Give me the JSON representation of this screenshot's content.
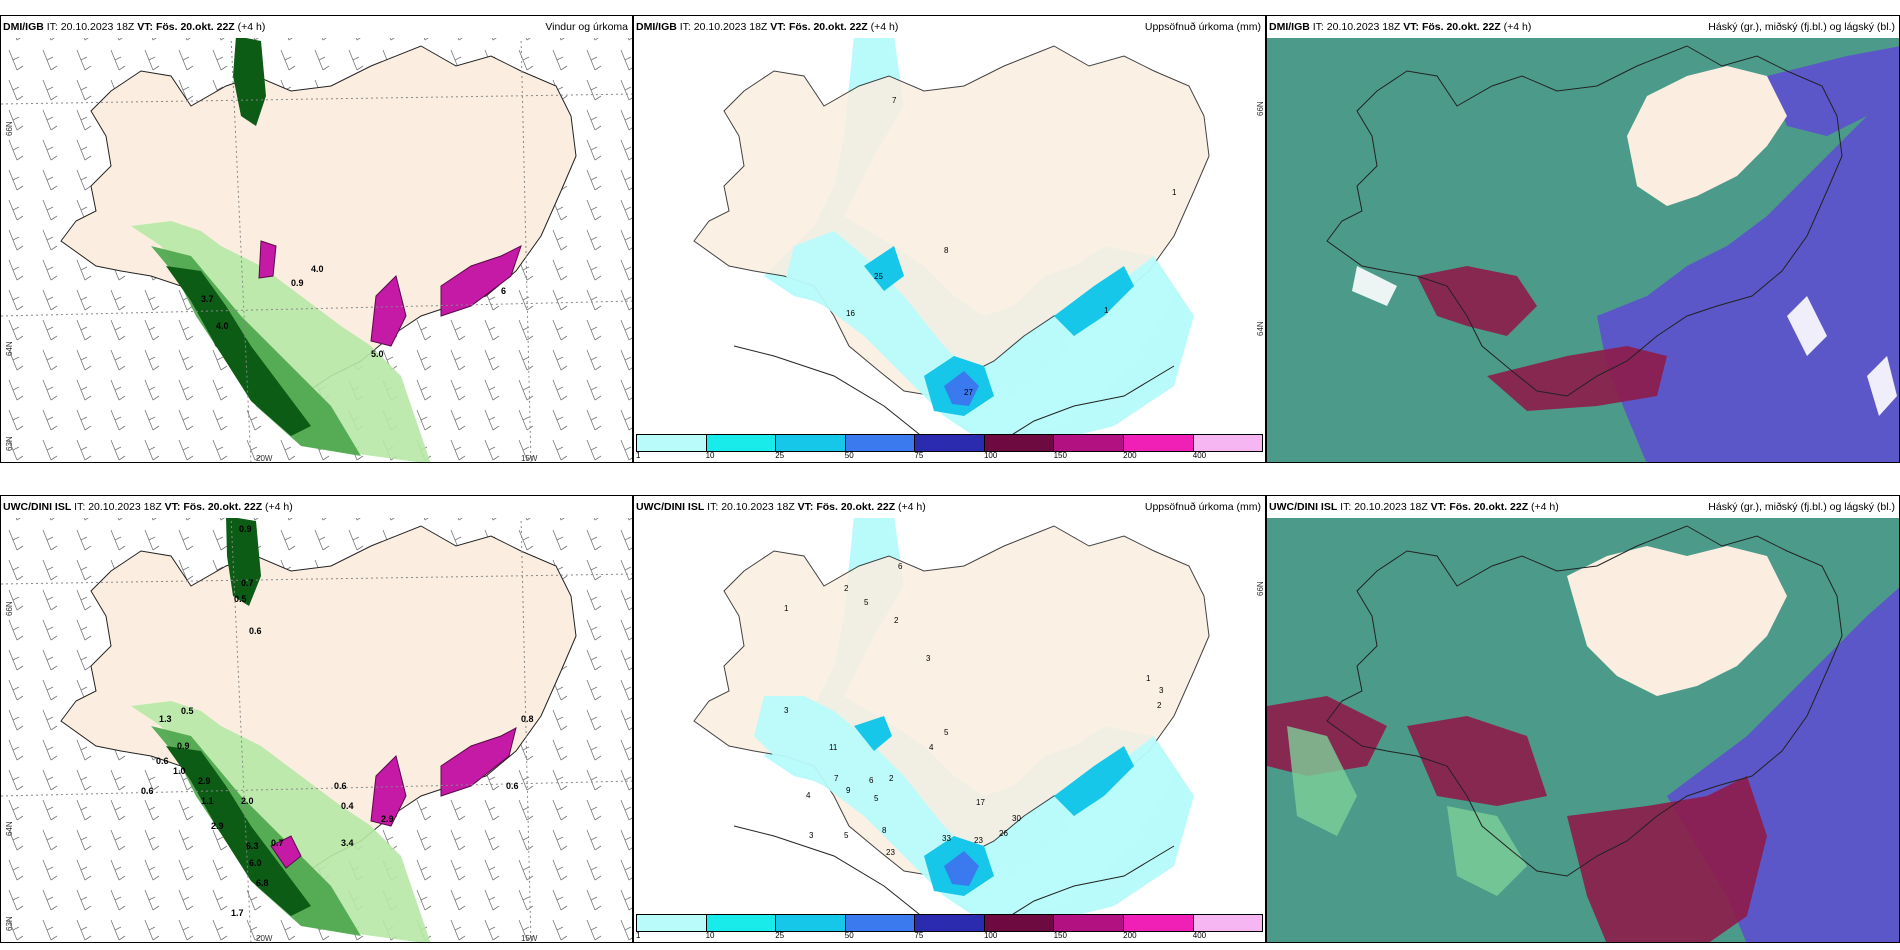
{
  "panels": [
    {
      "id": "p1",
      "source": "DMI/IGB",
      "it_label": "IT:",
      "it_value": "20.10.2023 18Z",
      "vt_label": "VT:",
      "vt_value": "Fös. 20.okt. 22Z",
      "lead": "(+4 h)",
      "right_title": "Vindur og úrkoma",
      "lat_labels": [
        "66N",
        "64N",
        "63N"
      ],
      "lon_labels": [
        "20W",
        "15W"
      ],
      "values": [
        "3.7",
        "4.0",
        "0.9",
        "4.0",
        "5.0",
        "6"
      ]
    },
    {
      "id": "p2",
      "source": "DMI/IGB",
      "it_label": "IT:",
      "it_value": "20.10.2023 18Z",
      "vt_label": "VT:",
      "vt_value": "Fös. 20.okt. 22Z",
      "lead": "(+4 h)",
      "right_title": "Uppsöfnuð úrkoma (mm)",
      "lat_labels": [
        "66N",
        "64N"
      ],
      "values": [
        "7",
        "1",
        "8",
        "25",
        "16",
        "1",
        "27"
      ],
      "legend_ticks": [
        "1",
        "10",
        "25",
        "50",
        "75",
        "100",
        "150",
        "200",
        "400"
      ]
    },
    {
      "id": "p3",
      "source": "DMI/IGB",
      "it_label": "IT:",
      "it_value": "20.10.2023 18Z",
      "vt_label": "VT:",
      "vt_value": "Fös. 20.okt. 22Z",
      "lead": "(+4 h)",
      "right_title": "Háský (gr.), miðský (fj.bl.) og lágský (bl.)"
    },
    {
      "id": "p4",
      "source": "UWC/DINI ISL",
      "it_label": "IT:",
      "it_value": "20.10.2023 18Z",
      "vt_label": "VT:",
      "vt_value": "Fös. 20.okt. 22Z",
      "lead": "(+4 h)",
      "right_title": "",
      "lat_labels": [
        "66N",
        "64N",
        "63N"
      ],
      "lon_labels": [
        "20W",
        "15W"
      ],
      "values": [
        "0.9",
        "0.7",
        "0.5",
        "0.6",
        "1.3",
        "0.5",
        "0.9",
        "1.0",
        "0.6",
        "0.6",
        "2.9",
        "2.0",
        "1.1",
        "2.9",
        "0.7",
        "6.3",
        "6.0",
        "6.8",
        "3.4",
        "0.6",
        "0.4",
        "2.9",
        "0.8",
        "0.6",
        "1.7"
      ]
    },
    {
      "id": "p5",
      "source": "UWC/DINI ISL",
      "it_label": "IT:",
      "it_value": "20.10.2023 18Z",
      "vt_label": "VT:",
      "vt_value": "Fös. 20.okt. 22Z",
      "lead": "(+4 h)",
      "right_title": "Uppsöfnuð úrkoma (mm)",
      "lat_labels": [
        "66N"
      ],
      "values": [
        "6",
        "2",
        "5",
        "2",
        "1",
        "3",
        "3",
        "11",
        "5",
        "4",
        "7",
        "9",
        "6",
        "5",
        "2",
        "4",
        "3",
        "5",
        "8",
        "17",
        "30",
        "23",
        "26",
        "33",
        "23",
        "1",
        "3",
        "2"
      ],
      "legend_ticks": [
        "1",
        "10",
        "25",
        "50",
        "75",
        "100",
        "150",
        "200",
        "400"
      ]
    },
    {
      "id": "p6",
      "source": "UWC/DINI ISL",
      "it_label": "IT:",
      "it_value": "20.10.2023 18Z",
      "vt_label": "VT:",
      "vt_value": "Fös. 20.okt. 22Z",
      "lead": "(+4 h)",
      "right_title": "Háský (gr.), miðský (fj.bl.) og lágský (bl.)"
    }
  ],
  "colors": {
    "land": "#fbeee0",
    "precip_scale": [
      "#b9fbfb",
      "#19ebeb",
      "#16c7ea",
      "#3b79ee",
      "#2b2bb0",
      "#6d0a3f",
      "#b21281",
      "#f01fb5",
      "#f6b6f2"
    ],
    "green_light": "#b7e8a6",
    "green_mid": "#4aa54a",
    "green_dark": "#0c5c16",
    "cloud_teal": "#4c9b8a",
    "cloud_blue": "#5b57c8",
    "cloud_red": "#8e1c4a"
  }
}
